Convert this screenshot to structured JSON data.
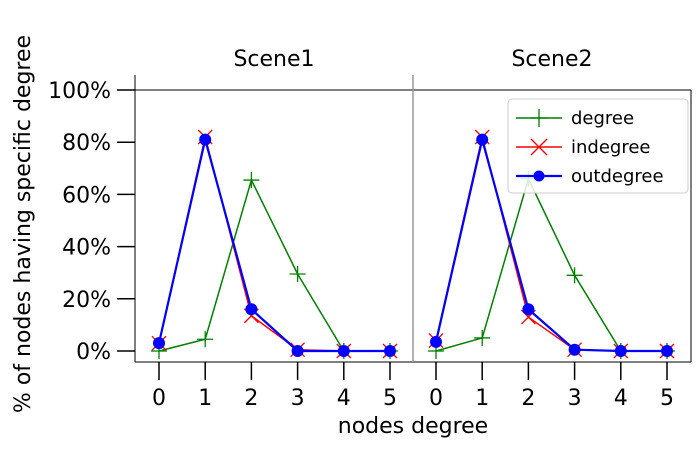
{
  "chart_data": {
    "type": "line",
    "xlabel": "nodes degree",
    "ylabel": "% of nodes having specific degree",
    "ylim": [
      0,
      100
    ],
    "y_ticks": [
      "0%",
      "20%",
      "40%",
      "60%",
      "80%",
      "100%"
    ],
    "y_tick_values": [
      0,
      20,
      40,
      60,
      80,
      100
    ],
    "x_ticks": [
      0,
      1,
      2,
      3,
      4,
      5
    ],
    "legend_position": "top-right",
    "panels": [
      {
        "title": "Scene1",
        "series": [
          {
            "name": "degree",
            "color": "#008000",
            "marker": "plus",
            "values": [
              0,
              4.5,
              65.5,
              29.5,
              0,
              0
            ]
          },
          {
            "name": "indegree",
            "color": "#ff0000",
            "marker": "x",
            "values": [
              3,
              82,
              13.5,
              0.5,
              0,
              0
            ]
          },
          {
            "name": "outdegree",
            "color": "#0000ff",
            "marker": "circle",
            "values": [
              3,
              81,
              16,
              0,
              0,
              0
            ]
          }
        ]
      },
      {
        "title": "Scene2",
        "series": [
          {
            "name": "degree",
            "color": "#008000",
            "marker": "plus",
            "values": [
              0,
              5,
              66,
              29,
              0,
              0
            ]
          },
          {
            "name": "indegree",
            "color": "#ff0000",
            "marker": "x",
            "values": [
              4,
              82,
              13,
              0.5,
              0,
              0
            ]
          },
          {
            "name": "outdegree",
            "color": "#0000ff",
            "marker": "circle",
            "values": [
              3.5,
              81,
              16,
              0.5,
              0,
              0
            ]
          }
        ]
      }
    ]
  }
}
